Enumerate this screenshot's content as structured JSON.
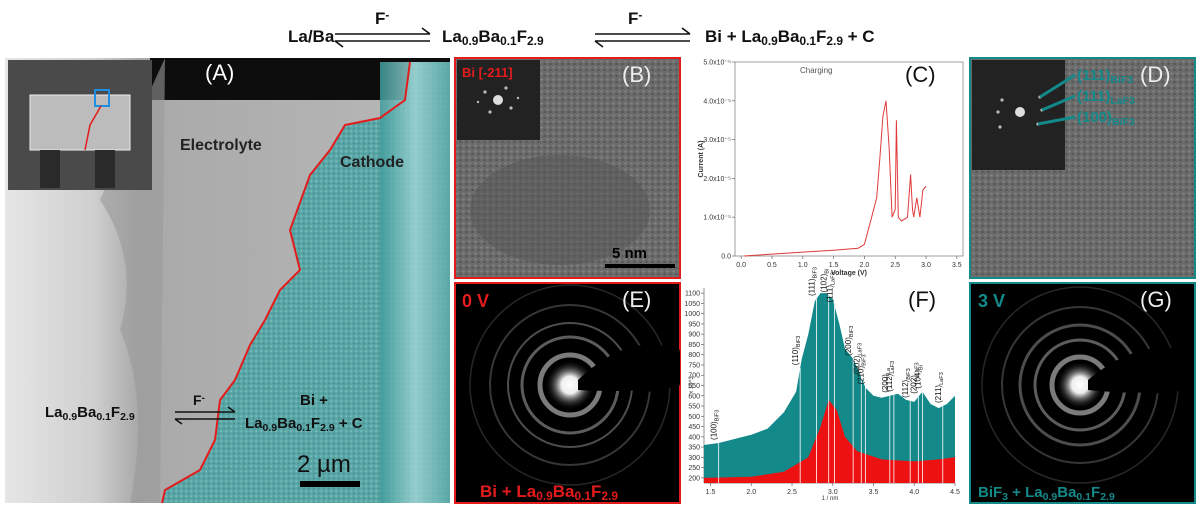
{
  "equation": {
    "left": [
      {
        "t": "La/Ba"
      }
    ],
    "arrow1": [
      {
        "t": "F"
      },
      {
        "sup": "-"
      }
    ],
    "middle": [
      {
        "t": "La"
      },
      {
        "sub": "0.9"
      },
      {
        "t": "Ba"
      },
      {
        "sub": "0.1"
      },
      {
        "t": "F"
      },
      {
        "sub": "2.9"
      }
    ],
    "arrow2": [
      {
        "t": "F"
      },
      {
        "sup": "-"
      }
    ],
    "right": [
      {
        "t": "Bi +  La"
      },
      {
        "sub": "0.9"
      },
      {
        "t": "Ba"
      },
      {
        "sub": "0.1"
      },
      {
        "t": "F"
      },
      {
        "sub": "2.9"
      },
      {
        "t": " + C"
      }
    ]
  },
  "panels": {
    "A": {
      "label": "(A)",
      "electrolyte": "Electrolyte",
      "cathode": "Cathode",
      "product_line1": [
        {
          "t": "Bi +"
        }
      ],
      "product_line2": [
        {
          "t": "La"
        },
        {
          "sub": "0.9"
        },
        {
          "t": "Ba"
        },
        {
          "sub": "0.1"
        },
        {
          "t": "F"
        },
        {
          "sub": "2.9"
        },
        {
          "t": " + C"
        }
      ],
      "ion": [
        {
          "t": "F"
        },
        {
          "sup": "-"
        }
      ],
      "reactant": [
        {
          "t": "La"
        },
        {
          "sub": "0.9"
        },
        {
          "t": "Ba"
        },
        {
          "sub": "0.1"
        },
        {
          "t": "F"
        },
        {
          "sub": "2.9"
        }
      ],
      "scale_bar": "2 µm"
    },
    "B": {
      "label": "(B)",
      "zone_axis": "Bi [-211]",
      "scale_bar": "5 nm"
    },
    "C": {
      "type": "line",
      "label": "(C)",
      "title": "Charging",
      "x_label": "Voltage (V)",
      "y_label": "Current (A)",
      "color": "#e03a3a",
      "x": [
        0.05,
        0.5,
        1.0,
        1.5,
        1.9,
        2.0,
        2.1,
        2.2,
        2.25,
        2.3,
        2.35,
        2.4,
        2.45,
        2.5,
        2.52,
        2.55,
        2.6,
        2.7,
        2.75,
        2.78,
        2.8,
        2.85,
        2.9,
        2.95,
        3.0
      ],
      "values": [
        0.0,
        5e-07,
        1e-06,
        1.5e-06,
        2e-06,
        3e-06,
        9e-06,
        1.5e-05,
        2.5e-05,
        3.6e-05,
        4e-05,
        2.8e-05,
        1e-05,
        1.2e-05,
        3.5e-05,
        1e-05,
        9e-06,
        1e-05,
        2.1e-05,
        1.2e-05,
        1e-05,
        1.5e-05,
        1e-05,
        1.7e-05,
        1.8e-05
      ],
      "xlim": [
        -0.1,
        3.6
      ],
      "ylim": [
        0,
        5e-05
      ],
      "xticks": [
        {
          "value": 0,
          "label": "0.0"
        },
        0.5,
        {
          "value": 1,
          "label": "1.0"
        },
        1.5,
        {
          "value": 2,
          "label": "2.0"
        },
        2.5,
        {
          "value": 3,
          "label": "3.0"
        },
        3.5
      ],
      "yticks": [
        {
          "value": 0,
          "label": "0.0"
        },
        {
          "value": 1e-05,
          "label": "1.0x10⁻⁵"
        },
        {
          "value": 2e-05,
          "label": "2.0x10⁻⁵"
        },
        {
          "value": 3e-05,
          "label": "3.0x10⁻⁵"
        },
        {
          "value": 4e-05,
          "label": "4.0x10⁻⁵"
        },
        {
          "value": 5e-05,
          "label": "5.0x10⁻⁵"
        }
      ]
    },
    "D": {
      "label": "(D)",
      "spots": [
        [
          {
            "t": "(111)"
          },
          {
            "sub": "BiF3"
          }
        ],
        [
          {
            "t": "(111)"
          },
          {
            "sub": "LaF3"
          }
        ],
        [
          {
            "t": "(100)"
          },
          {
            "sub": "BiF3"
          }
        ]
      ]
    },
    "E": {
      "label": "(E)",
      "voltage": "0 V",
      "phase": [
        {
          "t": "Bi + La"
        },
        {
          "sub": "0.9"
        },
        {
          "t": "Ba"
        },
        {
          "sub": "0.1"
        },
        {
          "t": "F"
        },
        {
          "sub": "2.9"
        }
      ]
    },
    "F": {
      "type": "area",
      "label": "(F)",
      "x_label": "1 / nm",
      "y_label": "x 10^3",
      "series": [
        {
          "color": "#14898a",
          "x": [
            1.42,
            1.6,
            1.8,
            2.0,
            2.2,
            2.4,
            2.55,
            2.62,
            2.7,
            2.78,
            2.85,
            2.92,
            3.0,
            3.08,
            3.15,
            3.25,
            3.32,
            3.4,
            3.5,
            3.6,
            3.7,
            3.8,
            3.9,
            4.0,
            4.1,
            4.2,
            4.3,
            4.4,
            4.5
          ],
          "values": [
            360,
            370,
            390,
            410,
            440,
            520,
            620,
            780,
            900,
            1060,
            1100,
            1100,
            1070,
            950,
            830,
            780,
            720,
            640,
            600,
            590,
            600,
            610,
            580,
            570,
            620,
            560,
            540,
            560,
            600
          ]
        },
        {
          "color": "#ee1111",
          "x": [
            1.42,
            2.0,
            2.4,
            2.7,
            2.85,
            2.95,
            3.05,
            3.15,
            3.3,
            3.6,
            4.0,
            4.3,
            4.5
          ],
          "values": [
            200,
            205,
            230,
            300,
            450,
            580,
            530,
            400,
            330,
            290,
            280,
            290,
            300
          ]
        }
      ],
      "peaks": [
        {
          "x": 1.6,
          "label": [
            {
              "t": "(100)"
            },
            {
              "sub": "BiF3"
            }
          ]
        },
        {
          "x": 2.6,
          "label": [
            {
              "t": "(110)"
            },
            {
              "sub": "BiF3"
            }
          ]
        },
        {
          "x": 2.8,
          "label": [
            {
              "t": "(111)"
            },
            {
              "sub": "BiF3"
            }
          ]
        },
        {
          "x": 2.95,
          "label": [
            {
              "t": "(102)"
            },
            {
              "sub": "Bi"
            }
          ]
        },
        {
          "x": 3.02,
          "label": [
            {
              "t": "(111)"
            },
            {
              "sub": "LaF3"
            }
          ]
        },
        {
          "x": 3.25,
          "label": [
            {
              "t": "(200)"
            },
            {
              "sub": "BiF3"
            }
          ]
        },
        {
          "x": 3.35,
          "label": [
            {
              "t": "(002)"
            },
            {
              "sub": "LaF3"
            }
          ]
        },
        {
          "x": 3.4,
          "label": [
            {
              "t": "(210)"
            },
            {
              "sub": "BiF3"
            }
          ]
        },
        {
          "x": 3.7,
          "label": [
            {
              "t": "(200)"
            },
            {
              "sub": "La"
            }
          ]
        },
        {
          "x": 3.75,
          "label": [
            {
              "t": "(112)"
            },
            {
              "sub": "LaF3"
            }
          ]
        },
        {
          "x": 3.95,
          "label": [
            {
              "t": "(112)"
            },
            {
              "sub": "BiF3"
            }
          ]
        },
        {
          "x": 4.05,
          "label": [
            {
              "t": "(202)"
            },
            {
              "sub": "LaF3"
            }
          ]
        },
        {
          "x": 4.1,
          "label": [
            {
              "t": "(104)"
            },
            {
              "sub": "Bi"
            }
          ]
        },
        {
          "x": 4.35,
          "label": [
            {
              "t": "(211)"
            },
            {
              "sub": "LaF3"
            }
          ]
        }
      ],
      "xlim": [
        1.42,
        4.5
      ],
      "ylim": [
        175,
        1125
      ],
      "xticks": [
        1.5,
        {
          "value": 2,
          "label": "2.0"
        },
        2.5,
        {
          "value": 3,
          "label": "3.0"
        },
        3.5,
        {
          "value": 4,
          "label": "4.0"
        },
        4.5
      ],
      "yticks": [
        200,
        250,
        300,
        350,
        400,
        450,
        500,
        550,
        600,
        650,
        700,
        750,
        800,
        850,
        900,
        950,
        1000,
        1050,
        1100
      ]
    },
    "G": {
      "label": "(G)",
      "voltage": "3 V",
      "phase": [
        {
          "t": "BiF"
        },
        {
          "sub": "3"
        },
        {
          "t": " + La"
        },
        {
          "sub": "0.9"
        },
        {
          "t": "Ba"
        },
        {
          "sub": "0.1"
        },
        {
          "t": "F"
        },
        {
          "sub": "2.9"
        }
      ]
    }
  }
}
